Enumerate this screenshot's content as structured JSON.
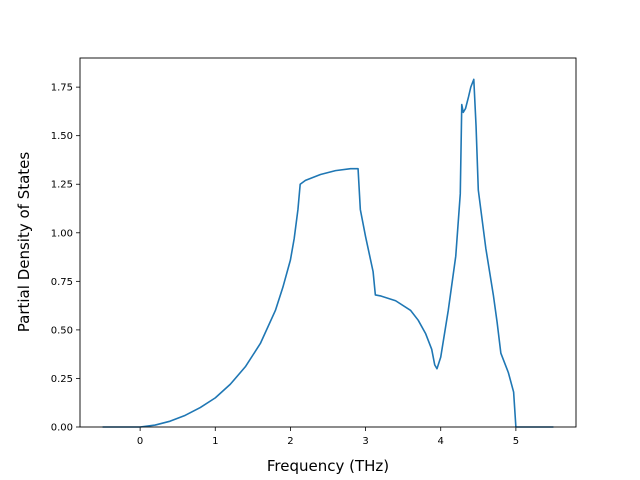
{
  "chart_data": {
    "type": "line",
    "title": "",
    "xlabel": "Frequency (THz)",
    "ylabel": "Partial Density of States",
    "xlim": [
      -0.8,
      5.8
    ],
    "ylim": [
      0,
      1.9
    ],
    "xticks": [
      0,
      1,
      2,
      3,
      4,
      5
    ],
    "xtick_labels": [
      "0",
      "1",
      "2",
      "3",
      "4",
      "5"
    ],
    "yticks": [
      0,
      0.25,
      0.5,
      0.75,
      1.0,
      1.25,
      1.5,
      1.75
    ],
    "ytick_labels": [
      "0.00",
      "0.25",
      "0.50",
      "0.75",
      "1.00",
      "1.25",
      "1.50",
      "1.75"
    ],
    "grid": false,
    "series": [
      {
        "color": "#1f77b4",
        "x": [
          -0.5,
          0.0,
          0.2,
          0.4,
          0.6,
          0.8,
          1.0,
          1.2,
          1.4,
          1.6,
          1.8,
          1.9,
          2.0,
          2.05,
          2.1,
          2.13,
          2.2,
          2.4,
          2.6,
          2.8,
          2.85,
          2.9,
          2.93,
          3.0,
          3.1,
          3.13,
          3.2,
          3.4,
          3.6,
          3.7,
          3.8,
          3.88,
          3.92,
          3.95,
          4.0,
          4.1,
          4.2,
          4.26,
          4.28,
          4.3,
          4.33,
          4.37,
          4.4,
          4.44,
          4.47,
          4.5,
          4.6,
          4.7,
          4.75,
          4.8,
          4.9,
          4.97,
          5.0,
          5.5
        ],
        "y": [
          0.0,
          0.0,
          0.01,
          0.03,
          0.06,
          0.1,
          0.15,
          0.22,
          0.31,
          0.43,
          0.6,
          0.72,
          0.86,
          0.97,
          1.12,
          1.25,
          1.27,
          1.3,
          1.32,
          1.33,
          1.33,
          1.33,
          1.12,
          0.98,
          0.8,
          0.68,
          0.675,
          0.65,
          0.6,
          0.55,
          0.48,
          0.4,
          0.32,
          0.3,
          0.36,
          0.6,
          0.88,
          1.2,
          1.66,
          1.62,
          1.64,
          1.7,
          1.75,
          1.79,
          1.55,
          1.22,
          0.92,
          0.68,
          0.54,
          0.38,
          0.28,
          0.18,
          0.0,
          0.0
        ]
      }
    ]
  }
}
